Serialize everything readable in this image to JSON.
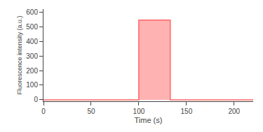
{
  "chart_data": {
    "type": "area",
    "x": [
      0,
      98,
      100,
      100,
      132,
      133,
      133,
      220
    ],
    "values": [
      0,
      0,
      0,
      545,
      545,
      545,
      0,
      0
    ],
    "color": "#ff6666",
    "xlabel": "Time (s)",
    "ylabel": "Fluorescence intensity (a.u.)",
    "xlim": [
      0,
      220
    ],
    "ylim": [
      -10,
      620
    ],
    "xticks": [
      0,
      50,
      100,
      150,
      200
    ],
    "yticks": [
      0,
      100,
      200,
      300,
      400,
      500,
      600
    ],
    "grid": false
  }
}
